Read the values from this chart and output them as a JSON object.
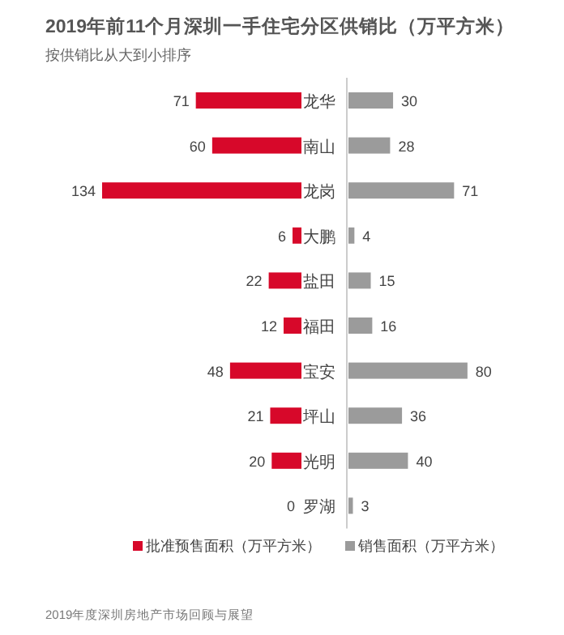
{
  "chart_data": [
    {
      "type": "bar",
      "orientation": "horizontal",
      "title": "2019年前11个月深圳一手住宅分区供销比（万平方米）",
      "subtitle": "按供销比从大到小排序",
      "categories": [
        "龙华",
        "南山",
        "龙岗",
        "大鹏",
        "盐田",
        "福田",
        "宝安",
        "坪山",
        "光明",
        "罗湖"
      ],
      "series": [
        {
          "name": "批准预售面积（万平方米）",
          "color": "#d7082a",
          "values": [
            71,
            60,
            134,
            6,
            22,
            12,
            48,
            21,
            20,
            0
          ]
        }
      ],
      "data_labels": true,
      "legend": "bottom"
    },
    {
      "type": "bar",
      "orientation": "horizontal",
      "categories": [
        null,
        null,
        null,
        null,
        null,
        null,
        null,
        null,
        null,
        null
      ],
      "series": [
        {
          "name": "销售面积（万平方米）",
          "color": "#9b9b9b",
          "values": [
            30,
            28,
            71,
            4,
            15,
            16,
            80,
            36,
            40,
            3
          ]
        }
      ],
      "data_labels": true,
      "legend": "bottom",
      "annotations": [
        "2019年度深圳房地产市场回顾与展望"
      ]
    }
  ]
}
